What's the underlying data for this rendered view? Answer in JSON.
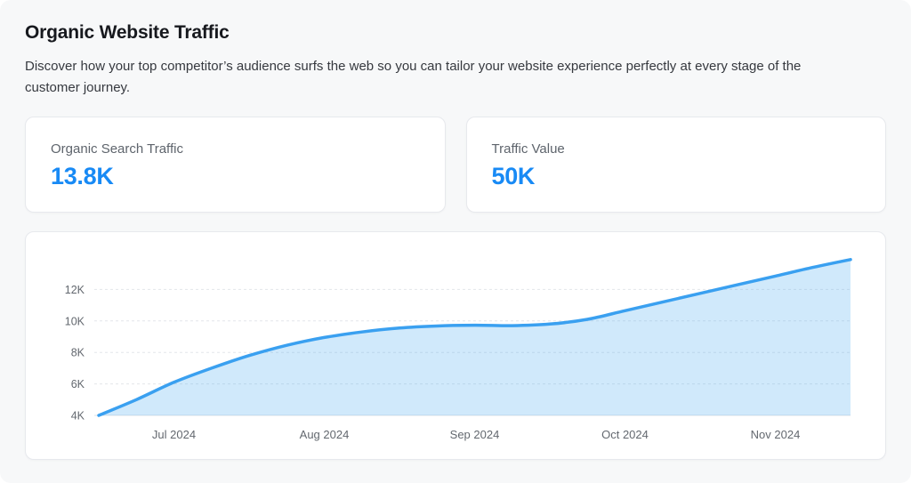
{
  "header": {
    "title": "Organic Website Traffic",
    "description": "Discover how your top competitor’s audience surfs the web so you can tailor your website experience perfectly at every stage of the customer journey."
  },
  "stats": [
    {
      "label": "Organic Search Traffic",
      "value": "13.8K"
    },
    {
      "label": "Traffic Value",
      "value": "50K"
    }
  ],
  "colors": {
    "accent_value": "#188af5",
    "line": "#3aa0f0",
    "area_fill": "rgba(80,175,242,0.27)",
    "grid": "#e3e6ea",
    "baseline": "#dde1e6",
    "axis_text": "#63686f"
  },
  "chart_data": {
    "type": "area",
    "title": "",
    "xlabel": "",
    "ylabel": "",
    "legend": "none",
    "grid": "horizontal-dashed",
    "y_range": [
      4000,
      14400
    ],
    "y_ticks": [
      {
        "label": "4K",
        "value": 4000
      },
      {
        "label": "6K",
        "value": 6000
      },
      {
        "label": "8K",
        "value": 8000
      },
      {
        "label": "10K",
        "value": 10000
      },
      {
        "label": "12K",
        "value": 12000
      }
    ],
    "x_ticks": [
      {
        "label": "Jul 2024",
        "t": 0.1
      },
      {
        "label": "Aug 2024",
        "t": 0.3
      },
      {
        "label": "Sep 2024",
        "t": 0.5
      },
      {
        "label": "Oct 2024",
        "t": 0.7
      },
      {
        "label": "Nov 2024",
        "t": 0.9
      }
    ],
    "series_name": "Organic Search Traffic",
    "points": [
      {
        "t": 0.0,
        "value": 4000
      },
      {
        "t": 0.05,
        "value": 5000
      },
      {
        "t": 0.1,
        "value": 6100
      },
      {
        "t": 0.15,
        "value": 7000
      },
      {
        "t": 0.2,
        "value": 7800
      },
      {
        "t": 0.25,
        "value": 8450
      },
      {
        "t": 0.3,
        "value": 8950
      },
      {
        "t": 0.35,
        "value": 9300
      },
      {
        "t": 0.4,
        "value": 9550
      },
      {
        "t": 0.45,
        "value": 9680
      },
      {
        "t": 0.5,
        "value": 9730
      },
      {
        "t": 0.55,
        "value": 9700
      },
      {
        "t": 0.6,
        "value": 9800
      },
      {
        "t": 0.65,
        "value": 10100
      },
      {
        "t": 0.7,
        "value": 10650
      },
      {
        "t": 0.75,
        "value": 11200
      },
      {
        "t": 0.8,
        "value": 11750
      },
      {
        "t": 0.85,
        "value": 12300
      },
      {
        "t": 0.9,
        "value": 12850
      },
      {
        "t": 0.95,
        "value": 13400
      },
      {
        "t": 1.0,
        "value": 13900
      }
    ]
  }
}
